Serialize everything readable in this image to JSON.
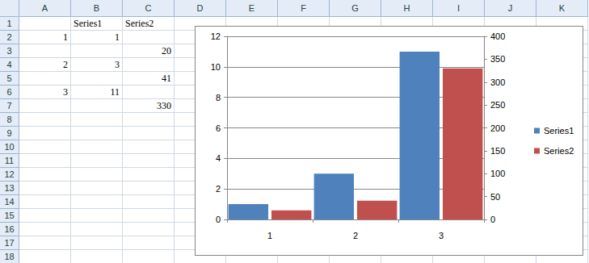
{
  "chart_data": {
    "type": "bar",
    "categories": [
      "1",
      "2",
      "3"
    ],
    "series": [
      {
        "name": "Series1",
        "color": "#4f81bd",
        "values": [
          1,
          3,
          11
        ]
      },
      {
        "name": "Series2",
        "color": "#c0504d",
        "values": [
          20,
          41,
          330
        ],
        "axis": "y2"
      }
    ],
    "ylim": [
      0,
      12
    ],
    "yticks": [
      0,
      2,
      4,
      6,
      8,
      10,
      12
    ],
    "y2lim": [
      0,
      400
    ],
    "y2ticks": [
      0,
      50,
      100,
      150,
      200,
      250,
      300,
      350,
      400
    ],
    "grid": true,
    "legend": "right"
  },
  "sheet": {
    "columns": [
      "A",
      "B",
      "C",
      "D",
      "E",
      "F",
      "G",
      "H",
      "I",
      "J",
      "K"
    ],
    "rows": [
      {
        "number": 1,
        "cells": [
          null,
          "Series1",
          "Series2"
        ]
      },
      {
        "number": 2,
        "cells": [
          1,
          1,
          null
        ]
      },
      {
        "number": 3,
        "cells": [
          null,
          null,
          20
        ]
      },
      {
        "number": 4,
        "cells": [
          2,
          3,
          null
        ]
      },
      {
        "number": 5,
        "cells": [
          null,
          null,
          41
        ]
      },
      {
        "number": 6,
        "cells": [
          3,
          11,
          null
        ]
      },
      {
        "number": 7,
        "cells": [
          null,
          null,
          330
        ]
      },
      {
        "number": 8,
        "cells": []
      },
      {
        "number": 9,
        "cells": []
      },
      {
        "number": 10,
        "cells": []
      },
      {
        "number": 11,
        "cells": []
      },
      {
        "number": 12,
        "cells": []
      },
      {
        "number": 13,
        "cells": []
      },
      {
        "number": 14,
        "cells": []
      },
      {
        "number": 15,
        "cells": []
      },
      {
        "number": 16,
        "cells": []
      },
      {
        "number": 17,
        "cells": []
      },
      {
        "number": 18,
        "cells": []
      }
    ]
  }
}
